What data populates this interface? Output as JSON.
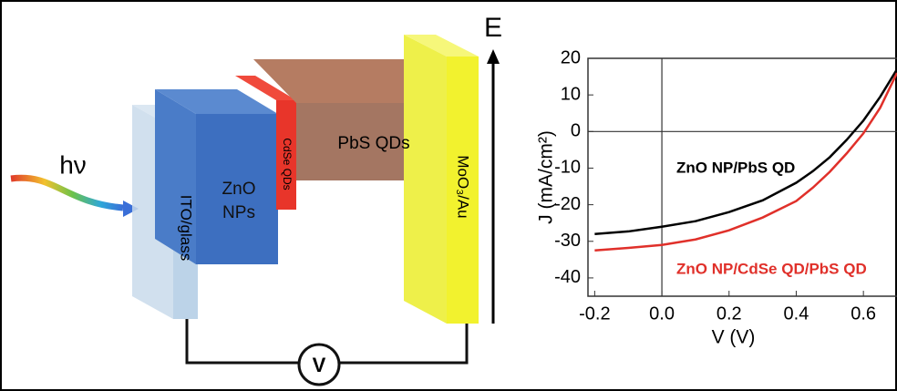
{
  "diagram": {
    "photon": "hν",
    "layers": [
      "ITO/glass",
      "ZnO NPs",
      "CdSe QDs",
      "PbS QDs",
      "MoO₃/Au"
    ],
    "energy_axis": "E",
    "meter": "V"
  },
  "chart_data": {
    "type": "line",
    "xlabel": "V (V)",
    "ylabel": "J (mA/cm²)",
    "x": [
      -0.2,
      -0.1,
      0,
      0.1,
      0.2,
      0.3,
      0.4,
      0.45,
      0.5,
      0.55,
      0.6,
      0.65,
      0.7
    ],
    "series": [
      {
        "name": "ZnO NP/PbS QD",
        "color": "#000000",
        "values": [
          -28,
          -27.3,
          -26,
          -24.5,
          -22,
          -18.8,
          -14,
          -10.8,
          -7,
          -2.3,
          3,
          9.5,
          17
        ]
      },
      {
        "name": "ZnO NP/CdSe QD/PbS QD",
        "color": "#e0302a",
        "values": [
          -32.5,
          -31.8,
          -31,
          -29.5,
          -27,
          -23.5,
          -19,
          -15.3,
          -11,
          -6,
          -0.5,
          6.5,
          16
        ]
      }
    ],
    "xlim": [
      -0.22,
      0.7
    ],
    "ylim": [
      -45,
      20
    ],
    "xticks": [
      {
        "value": -0.2,
        "label": "-0.2"
      },
      {
        "value": 0,
        "label": "0.0"
      },
      {
        "value": 0.2,
        "label": "0.2"
      },
      {
        "value": 0.4,
        "label": "0.4"
      },
      {
        "value": 0.6,
        "label": "0.6"
      }
    ],
    "yticks": [
      20,
      10,
      0,
      -10,
      -20,
      -30,
      -40
    ]
  }
}
